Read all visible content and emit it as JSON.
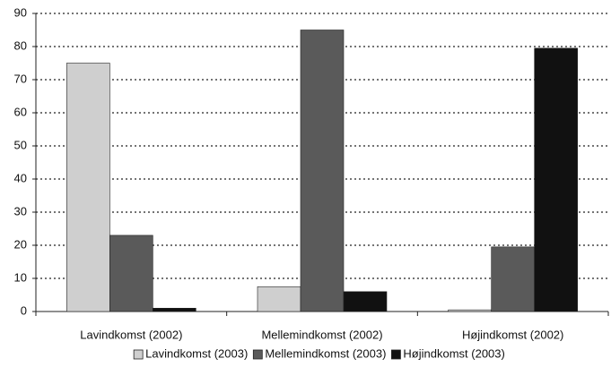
{
  "chart_data": {
    "type": "bar",
    "categories": [
      "Lavindkomst (2002)",
      "Mellemindkomst (2002)",
      "Højindkomst (2002)"
    ],
    "series": [
      {
        "name": "Lavindkomst (2003)",
        "color": "#cfcfcf",
        "values": [
          75,
          7.5,
          0.5
        ]
      },
      {
        "name": "Mellemindkomst (2003)",
        "color": "#5a5a5a",
        "values": [
          23,
          85,
          19.5
        ]
      },
      {
        "name": "Højindkomst (2003)",
        "color": "#111111",
        "values": [
          1,
          6,
          79.5
        ]
      }
    ],
    "ylim": [
      0,
      90
    ],
    "yticks": [
      0,
      10,
      20,
      30,
      40,
      50,
      60,
      70,
      80,
      90
    ],
    "grid": true,
    "legend": "bottom"
  }
}
